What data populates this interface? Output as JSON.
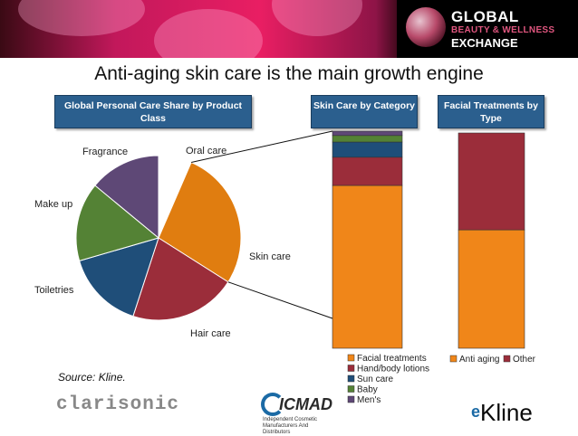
{
  "banner": {
    "brand_line1": "GLOBAL",
    "brand_line2": "BEAUTY & WELLNESS",
    "brand_line3": "EXCHANGE"
  },
  "title": "Anti-aging skin care is the main growth engine",
  "headers": {
    "pie": "Global Personal Care Share by Product Class",
    "bar1": "Skin Care by Category",
    "bar2": "Facial Treatments by Type"
  },
  "source": "Source: Kline.",
  "logos": {
    "clarisonic": "clarisonic",
    "icmad_word": "ICMAD",
    "icmad_sub": "Independent Cosmetic Manufacturers And Distributors",
    "kline": "Kline"
  },
  "colors": {
    "skin_care": "#e07d10",
    "hair_care": "#9b2d3a",
    "toiletries": "#1f4e79",
    "make_up": "#548235",
    "fragrance": "#5e4876",
    "oral_care": "#ffffff",
    "facial_treatments": "#f08619",
    "hand_body": "#9b2d3a",
    "sun_care": "#1f4e79",
    "baby": "#548235",
    "mens": "#5e4876",
    "anti_aging": "#f08619",
    "other": "#9b2d3a"
  },
  "chart_data": [
    {
      "type": "pie",
      "title": "Global Personal Care Share by Product Class",
      "slices": [
        {
          "label": "Oral care",
          "value": 6.5
        },
        {
          "label": "Skin care",
          "value": 27.5
        },
        {
          "label": "Hair care",
          "value": 21
        },
        {
          "label": "Toiletries",
          "value": 15.5
        },
        {
          "label": "Make up",
          "value": 15.5
        },
        {
          "label": "Fragrance",
          "value": 14
        }
      ]
    },
    {
      "type": "bar",
      "stacked": true,
      "title": "Skin Care by Category",
      "series": [
        {
          "name": "Facial treatments",
          "values": [
            75
          ]
        },
        {
          "name": "Hand/body lotions",
          "values": [
            13
          ]
        },
        {
          "name": "Sun care",
          "values": [
            7
          ]
        },
        {
          "name": "Baby",
          "values": [
            3
          ]
        },
        {
          "name": "Men's",
          "values": [
            2
          ]
        }
      ],
      "ylim": [
        0,
        100
      ],
      "legend": "bottom"
    },
    {
      "type": "bar",
      "stacked": true,
      "title": "Facial Treatments by Type",
      "series": [
        {
          "name": "Anti aging",
          "values": [
            55
          ]
        },
        {
          "name": "Other",
          "values": [
            45
          ]
        }
      ],
      "ylim": [
        0,
        100
      ],
      "legend": "bottom"
    }
  ]
}
